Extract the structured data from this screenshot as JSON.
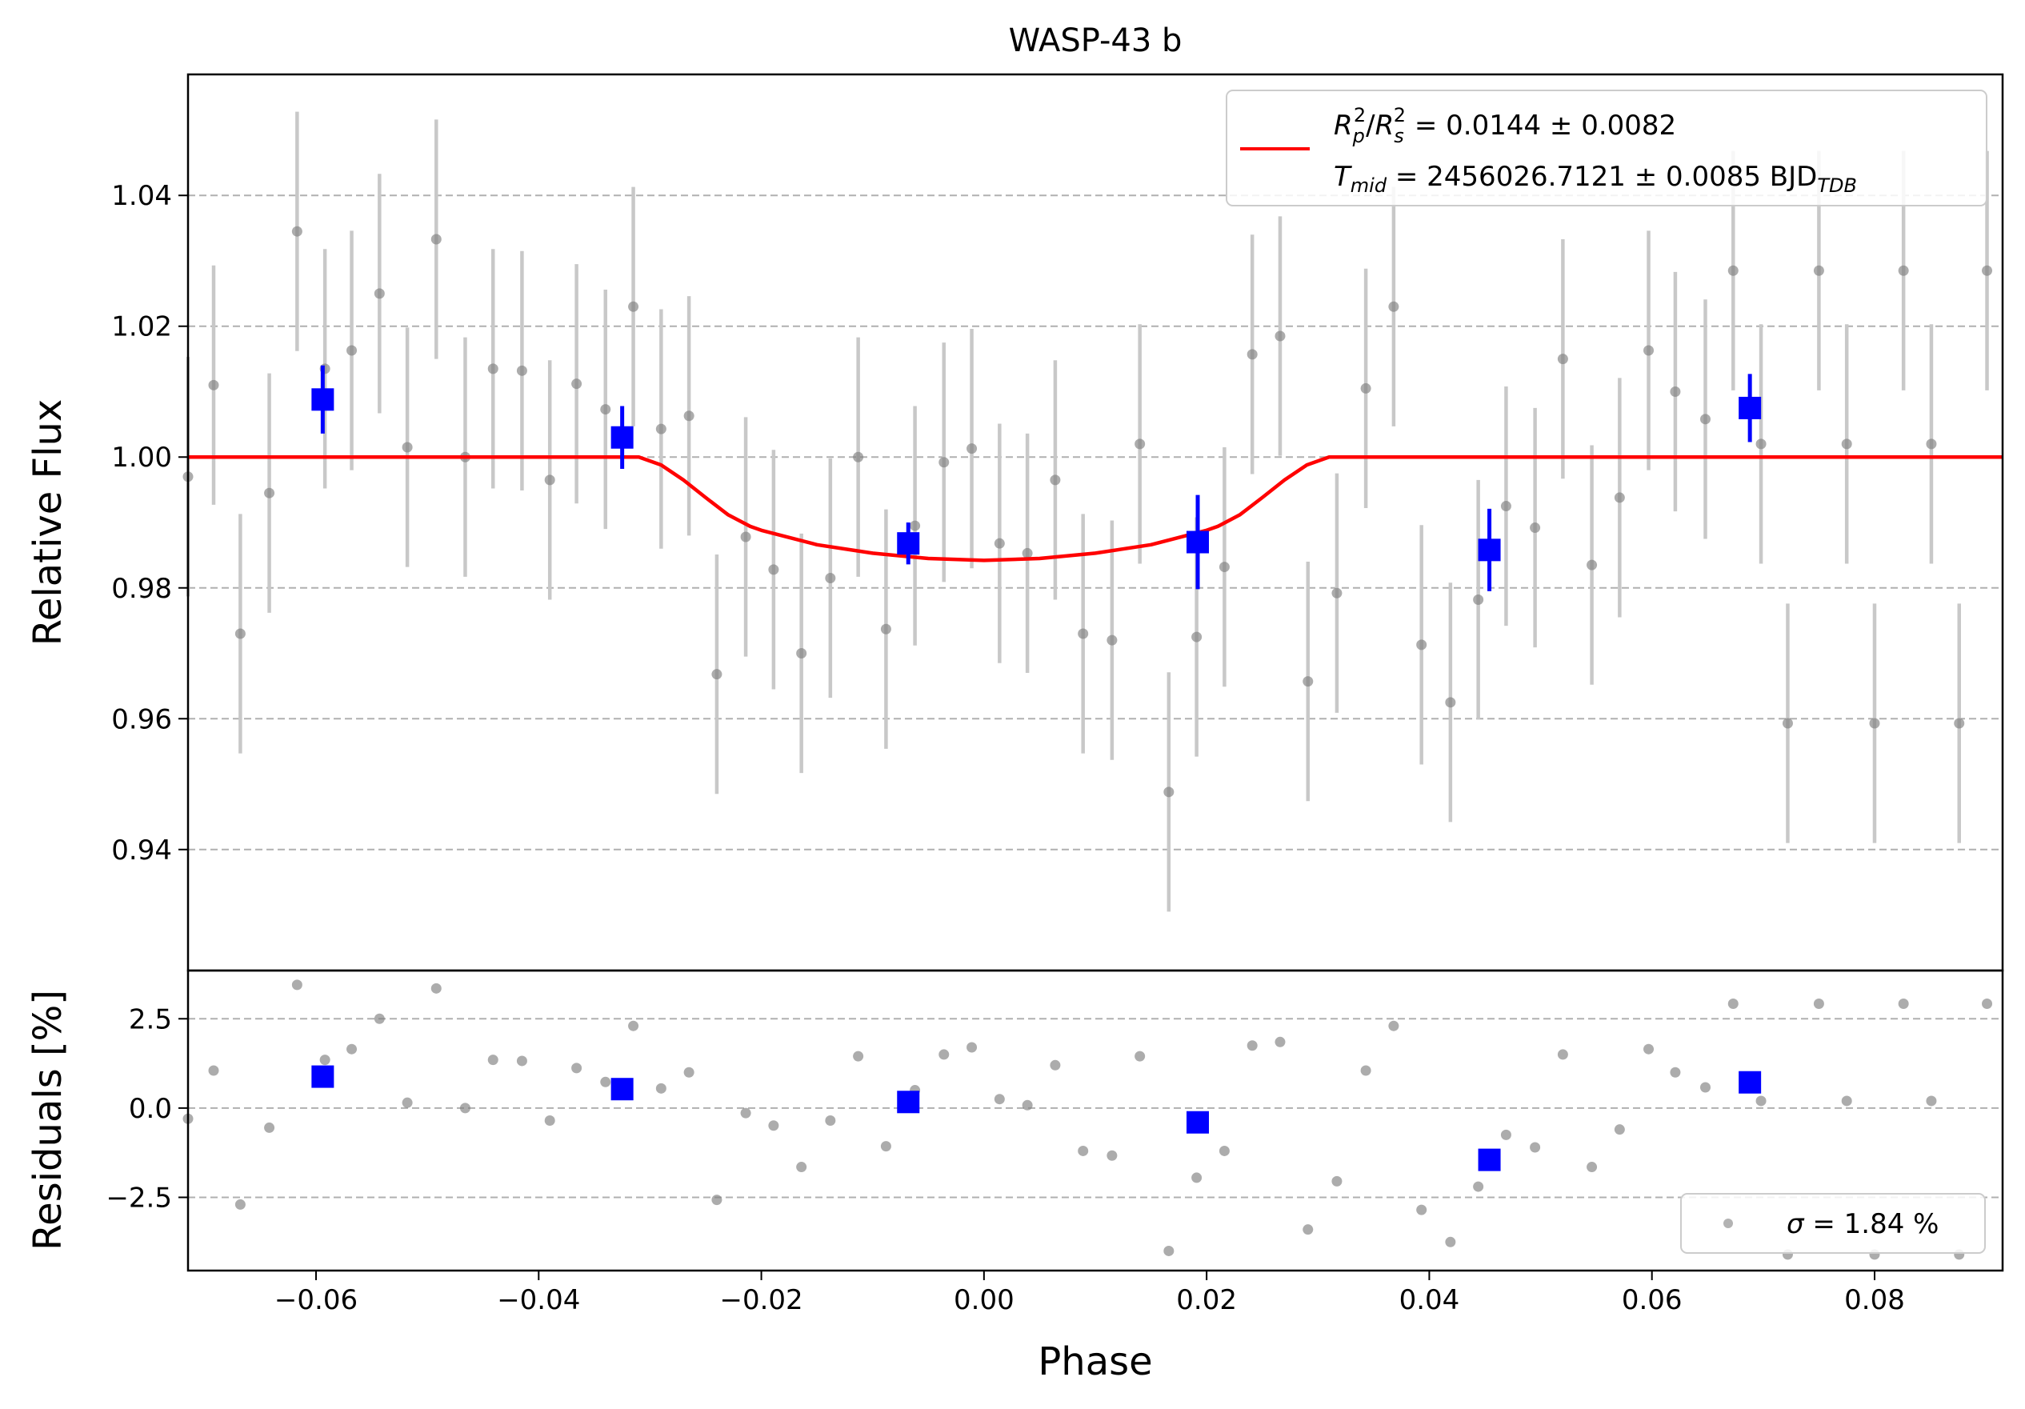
{
  "chart_data": {
    "type": "scatter",
    "title": "WASP-43 b",
    "xlabel": "Phase",
    "xlim": [
      -0.0715,
      0.0915
    ],
    "x_ticks": [
      -0.06,
      -0.04,
      -0.02,
      0.0,
      0.02,
      0.04,
      0.06,
      0.08
    ],
    "x_tick_labels": [
      "−0.06",
      "−0.04",
      "−0.02",
      "0.00",
      "0.02",
      "0.04",
      "0.06",
      "0.08"
    ],
    "panels": {
      "flux": {
        "ylabel": "Relative Flux",
        "ylim": [
          0.9215,
          1.0585
        ],
        "y_ticks": [
          0.94,
          0.96,
          0.98,
          1.0,
          1.02,
          1.04
        ],
        "y_tick_labels": [
          "0.94",
          "0.96",
          "0.98",
          "1.00",
          "1.02",
          "1.04"
        ],
        "grid": "y-dashed"
      },
      "residuals": {
        "ylabel": "Residuals [%]",
        "ylim": [
          -4.55,
          3.85
        ],
        "y_ticks": [
          -2.5,
          0.0,
          2.5
        ],
        "y_tick_labels": [
          "−2.5",
          "0.0",
          "2.5"
        ],
        "grid": "y-dashed"
      }
    },
    "legend": {
      "placement": "top-right",
      "line1": "Rₒ²/Rₛ² = 0.0144 ± 0.0082",
      "line1_parts": {
        "base1": "R",
        "sub1": "p",
        "sup1": "2",
        "sep": "/",
        "base2": "R",
        "sub2": "s",
        "sup2": "2",
        "rest": " = 0.0144 ± 0.0082"
      },
      "line2_parts": {
        "base": "T",
        "sub": "mid",
        "rest": " = 2456026.7121 ± 0.0085 BJD",
        "unit_sub": "TDB"
      }
    },
    "residual_legend": {
      "placement": "bottom-right",
      "label_symbol": "σ",
      "label_rest": " = 1.84 %"
    },
    "model": {
      "name": "transit model",
      "color": "#ff0000",
      "baseline": 1.0,
      "depth": 0.0158,
      "x": [
        -0.0715,
        -0.031,
        -0.029,
        -0.027,
        -0.025,
        -0.023,
        -0.021,
        -0.02,
        -0.015,
        -0.01,
        -0.005,
        0.0,
        0.005,
        0.01,
        0.015,
        0.02,
        0.021,
        0.023,
        0.025,
        0.027,
        0.029,
        0.031,
        0.0915
      ],
      "y": [
        1.0,
        1.0,
        0.9988,
        0.9965,
        0.9938,
        0.9912,
        0.9894,
        0.9888,
        0.9866,
        0.9853,
        0.9845,
        0.9842,
        0.9845,
        0.9853,
        0.9866,
        0.9888,
        0.9894,
        0.9912,
        0.9938,
        0.9965,
        0.9988,
        1.0,
        1.0
      ]
    },
    "series": [
      {
        "role": "raw",
        "color": "#808080",
        "error_color": "#c8c8c8",
        "x": [
          -0.0715,
          -0.0692,
          -0.0668,
          -0.0642,
          -0.0617,
          -0.0592,
          -0.0568,
          -0.0543,
          -0.0518,
          -0.0492,
          -0.0466,
          -0.0441,
          -0.0415,
          -0.039,
          -0.0366,
          -0.034,
          -0.0315,
          -0.029,
          -0.0265,
          -0.024,
          -0.0214,
          -0.0189,
          -0.0164,
          -0.0138,
          -0.0113,
          -0.0088,
          -0.0062,
          -0.0036,
          -0.0011,
          0.0014,
          0.0039,
          0.0064,
          0.0089,
          0.0115,
          0.014,
          0.0166,
          0.0191,
          0.0216,
          0.0241,
          0.0266,
          0.0291,
          0.0317,
          0.0343,
          0.0368,
          0.0393,
          0.0419,
          0.0444,
          0.0469,
          0.0495,
          0.052,
          0.0546,
          0.0571,
          0.0597,
          0.0621,
          0.0648,
          0.0673,
          0.0698,
          0.0722,
          0.075,
          0.0775,
          0.08,
          0.0826,
          0.0851,
          0.0876,
          0.0901
        ],
        "y": [
          0.997,
          1.011,
          0.973,
          0.9945,
          1.0345,
          1.0135,
          1.0163,
          1.025,
          1.0015,
          1.0333,
          1.0,
          1.0135,
          1.0132,
          0.9965,
          1.0112,
          1.0073,
          1.023,
          1.0043,
          1.0063,
          0.9668,
          0.9878,
          0.9828,
          0.97,
          0.9815,
          1.0,
          0.9737,
          0.9895,
          0.9992,
          1.0013,
          0.9868,
          0.9853,
          0.9965,
          0.973,
          0.972,
          1.002,
          0.9488,
          0.9725,
          0.9832,
          1.0157,
          1.0185,
          0.9657,
          0.9792,
          1.0105,
          1.023,
          0.9713,
          0.9625,
          0.9782,
          0.9925,
          0.9892,
          1.015,
          0.9835,
          0.9938,
          1.0163,
          1.01,
          1.0058,
          1.0285,
          1.002,
          0.9593,
          1.0285,
          1.002,
          0.9593,
          1.0285,
          1.002,
          0.9593,
          1.0285
        ],
        "err": 0.0183,
        "residuals": [
          -0.3,
          1.05,
          -2.7,
          -0.55,
          3.45,
          1.35,
          1.65,
          2.5,
          0.15,
          3.35,
          0.0,
          1.35,
          1.32,
          -0.35,
          1.12,
          0.73,
          2.3,
          0.55,
          1.0,
          -2.57,
          -0.14,
          -0.49,
          -1.65,
          -0.35,
          1.45,
          -1.07,
          0.5,
          1.5,
          1.7,
          0.25,
          0.08,
          1.2,
          -1.2,
          -1.33,
          1.45,
          -4.0,
          -1.95,
          -1.2,
          1.75,
          1.85,
          -3.4,
          -2.05,
          1.05,
          2.3,
          -2.85,
          -3.75,
          -2.2,
          -0.75,
          -1.1,
          1.5,
          -1.65,
          -0.6,
          1.65,
          1.0,
          0.58,
          2.92,
          0.2,
          -4.1,
          2.92,
          0.2,
          -4.1,
          2.92,
          0.2,
          -4.1,
          2.92
        ]
      },
      {
        "role": "binned",
        "color": "#0000ff",
        "x": [
          -0.0594,
          -0.0325,
          -0.0068,
          0.0192,
          0.0454,
          0.0688
        ],
        "y": [
          1.0088,
          1.003,
          0.9868,
          0.987,
          0.9858,
          1.0075
        ],
        "err": [
          0.0052,
          0.0048,
          0.0032,
          0.0072,
          0.0063,
          0.0052
        ],
        "residuals": [
          0.88,
          0.53,
          0.17,
          -0.4,
          -1.45,
          0.72
        ]
      }
    ]
  }
}
